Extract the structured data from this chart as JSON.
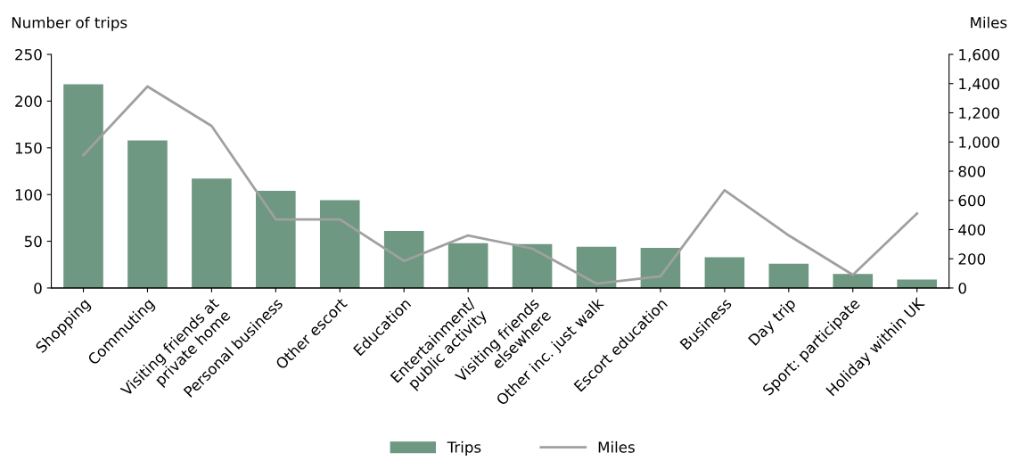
{
  "chart_data": {
    "type": "bar",
    "ylabel": "Number of trips",
    "y2label": "Miles",
    "categories": [
      "Shopping",
      "Commuting",
      "Visiting friends at\nprivate home",
      "Personal business",
      "Other escort",
      "Education",
      "Entertainment/\npublic activity",
      "Visiting friends\nelsewhere",
      "Other inc. just walk",
      "Escort education",
      "Business",
      "Day trip",
      "Sport: participate",
      "Holiday within UK"
    ],
    "series": [
      {
        "name": "Trips",
        "color": "#6e9882",
        "values": [
          218,
          158,
          117,
          104,
          94,
          61,
          48,
          47,
          44,
          43,
          33,
          26,
          15,
          9
        ]
      },
      {
        "name": "Miles",
        "type": "line",
        "axis": "y2",
        "color": "#a0a0a0",
        "values": [
          910,
          1380,
          1110,
          470,
          470,
          185,
          360,
          270,
          30,
          80,
          670,
          360,
          90,
          510
        ]
      }
    ],
    "ylim": [
      0,
      250
    ],
    "yticks": [
      0,
      50,
      100,
      150,
      200,
      250
    ],
    "y2lim": [
      0,
      1600
    ],
    "y2ticks": [
      0,
      {
        "value": 200,
        "label": "200"
      },
      {
        "value": 400,
        "label": "400"
      },
      {
        "value": 600,
        "label": "600"
      },
      {
        "value": 800,
        "label": "800"
      },
      {
        "value": 1000,
        "label": "1,000"
      },
      {
        "value": 1200,
        "label": "1,200"
      },
      {
        "value": 1400,
        "label": "1,400"
      },
      {
        "value": 1600,
        "label": "1,600"
      }
    ],
    "grid": false,
    "legend": "bottom",
    "marker": "none",
    "line_style": "solid"
  }
}
